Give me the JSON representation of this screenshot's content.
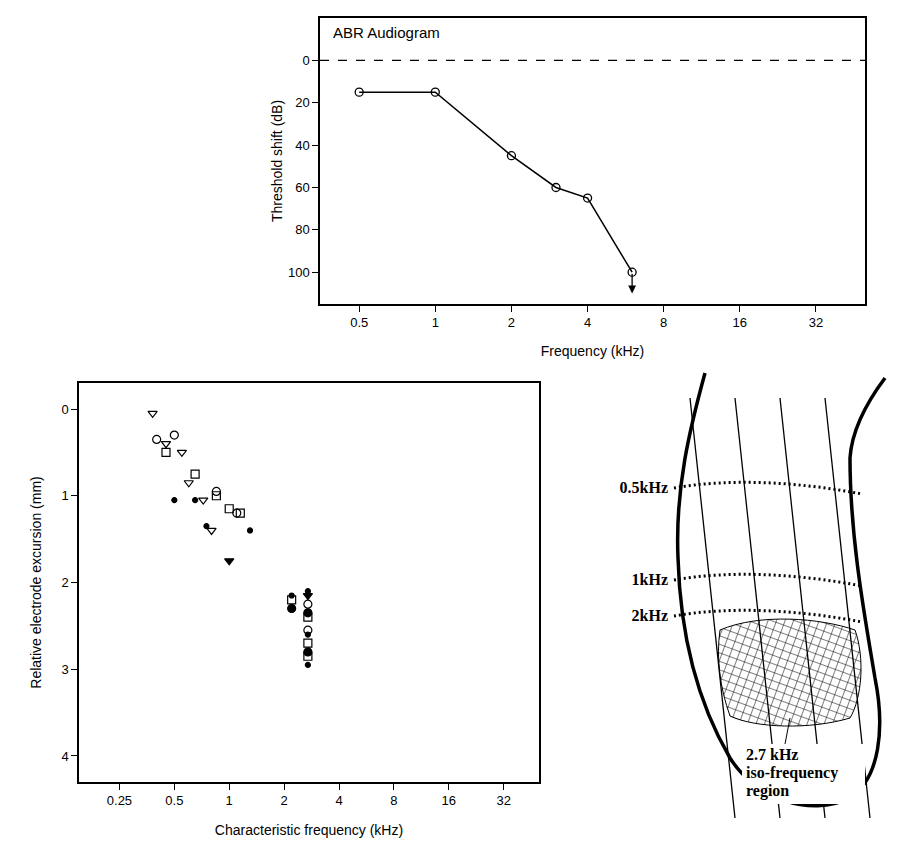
{
  "chart_data": [
    {
      "type": "line",
      "title": "ABR Audiogram",
      "x_label": "Frequency (kHz)",
      "y_label": "Threshold shift (dB)",
      "x": [
        0.5,
        1,
        2,
        3,
        4,
        6
      ],
      "values": [
        15,
        15,
        45,
        60,
        65,
        100
      ],
      "color": "#000000",
      "marker": "circle-open",
      "line_style": "solid",
      "log": "x",
      "xlim": [
        0.35,
        50
      ],
      "xticks": [
        0.5,
        1,
        2,
        4,
        8,
        16,
        32
      ],
      "ylim": [
        115,
        -20
      ],
      "yticks": [
        0,
        20,
        40,
        60,
        80,
        100
      ],
      "reference_lines": [
        {
          "value": 0,
          "line_style": "dash"
        }
      ],
      "arrows": [
        {
          "x": 6,
          "from": 100,
          "to": 110
        }
      ],
      "grid": false
    },
    {
      "type": "scatter",
      "x_label": "Characteristic frequency (kHz)",
      "y_label": "Relative electrode excursion (mm)",
      "log": "x",
      "xlim": [
        0.15,
        50
      ],
      "xticks": [
        0.25,
        0.5,
        1,
        2,
        4,
        8,
        16,
        32
      ],
      "ylim": [
        4.3,
        -0.3
      ],
      "yticks": [
        0,
        1,
        2,
        3,
        4
      ],
      "color": "#000000",
      "grid": false,
      "series": [
        {
          "marker": "triangle-down-open",
          "x": [
            0.38,
            0.45,
            0.55,
            0.6,
            0.72,
            0.8
          ],
          "values": [
            0.05,
            0.4,
            0.5,
            0.85,
            1.05,
            1.4
          ]
        },
        {
          "marker": "circle-open",
          "x": [
            0.4,
            0.5,
            0.85,
            1.1,
            2.7,
            2.7
          ],
          "values": [
            0.35,
            0.3,
            0.95,
            1.2,
            2.25,
            2.55
          ]
        },
        {
          "marker": "square-open",
          "x": [
            0.45,
            0.65,
            0.85,
            1.0,
            1.15,
            2.2,
            2.7,
            2.7,
            2.7
          ],
          "values": [
            0.5,
            0.75,
            1.0,
            1.15,
            1.2,
            2.2,
            2.4,
            2.7,
            2.85
          ]
        },
        {
          "marker": "circle",
          "x": [
            0.5,
            0.65,
            0.75,
            1.3,
            2.2,
            2.7,
            2.7,
            2.7
          ],
          "values": [
            1.05,
            1.05,
            1.35,
            1.4,
            2.15,
            2.1,
            2.6,
            2.95
          ]
        },
        {
          "marker": "triangle-down",
          "x": [
            1.0,
            2.7
          ],
          "values": [
            1.75,
            2.15
          ]
        },
        {
          "marker": "circle-dot",
          "x": [
            2.2,
            2.7,
            2.7
          ],
          "values": [
            2.3,
            2.35,
            2.8
          ]
        }
      ]
    }
  ],
  "diagram": {
    "iso_frequency_labels": [
      "0.5kHz",
      "1kHz",
      "2kHz"
    ],
    "region_label": [
      "2.7 kHz",
      "iso-frequency",
      "region"
    ]
  }
}
